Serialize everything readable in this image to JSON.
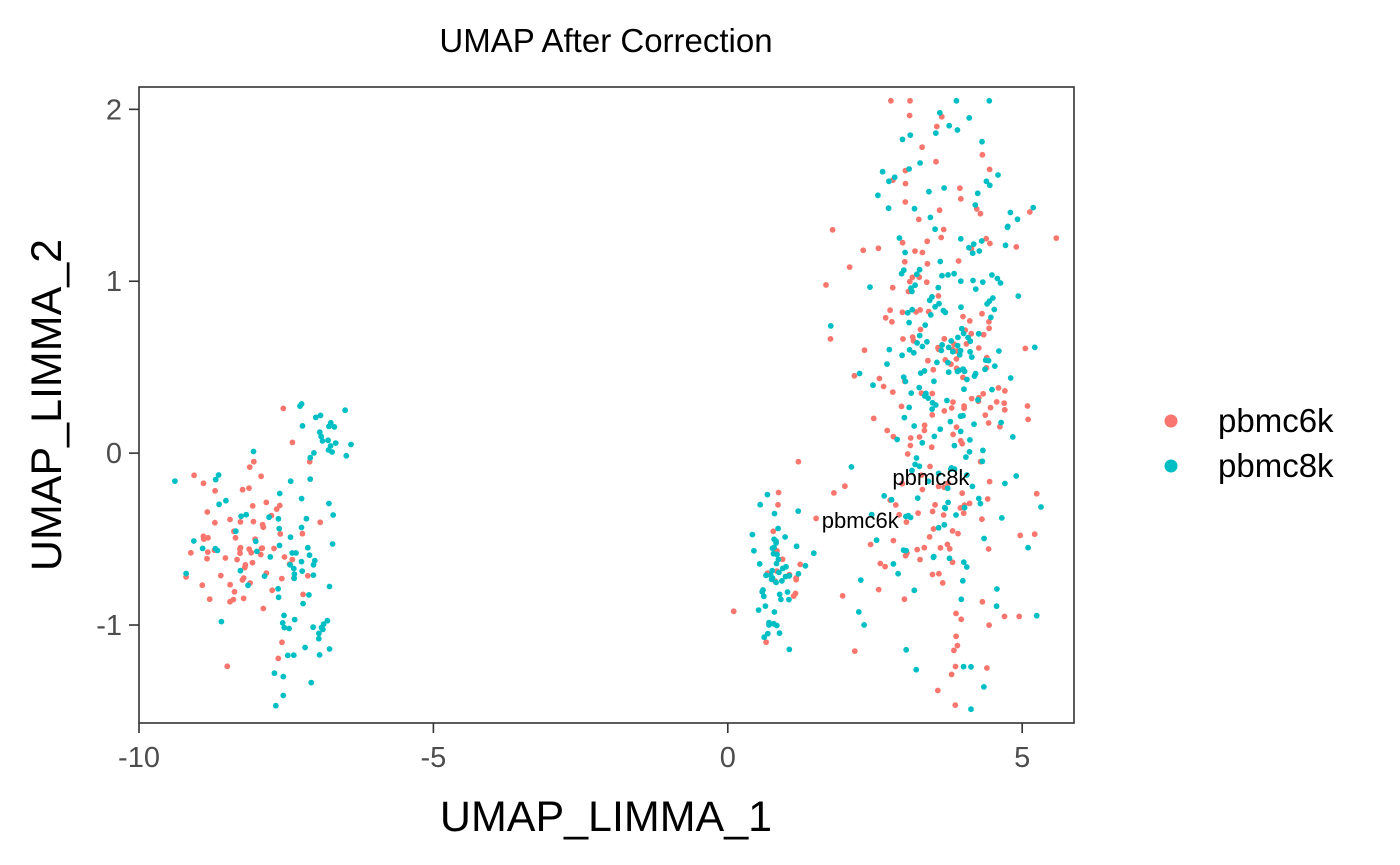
{
  "chart_data": {
    "type": "scatter",
    "title": "UMAP After Correction",
    "xlabel": "UMAP_LIMMA_1",
    "ylabel": "UMAP_LIMMA_2",
    "xlim": [
      -10.0,
      5.88
    ],
    "ylim": [
      -1.57,
      2.13
    ],
    "xticks": [
      -10,
      -5,
      0,
      5
    ],
    "xtick_labels": [
      "-10",
      "-5",
      "0",
      "5"
    ],
    "yticks": [
      -1,
      0,
      1,
      2
    ],
    "ytick_labels": [
      "-1",
      "0",
      "1",
      "2"
    ],
    "grid": false,
    "legend_position": "right",
    "series": [
      {
        "name": "pbmc6k",
        "color": "#F8766D",
        "clusters": [
          {
            "center": [
              -8.25,
              -0.52
            ],
            "spread": [
              0.55,
              0.24
            ],
            "n": 58
          },
          {
            "center": [
              -7.6,
              -0.92
            ],
            "spread": [
              0.3,
              0.22
            ],
            "n": 8
          },
          {
            "center": [
              0.95,
              -0.62
            ],
            "spread": [
              0.22,
              0.2
            ],
            "n": 14
          },
          {
            "center": [
              3.55,
              0.35
            ],
            "spread": [
              0.72,
              0.7
            ],
            "n": 185
          }
        ],
        "points": [
          [
            -9.2,
            -0.72
          ],
          [
            -9.12,
            -0.58
          ],
          [
            -8.9,
            -0.5
          ],
          [
            -8.8,
            -0.85
          ],
          [
            -8.5,
            -1.24
          ],
          [
            -8.05,
            -0.05
          ],
          [
            -7.55,
            0.26
          ],
          [
            -7.6,
            -0.47
          ],
          [
            -7.1,
            -0.05
          ],
          [
            0.1,
            -0.92
          ],
          [
            0.65,
            -1.1
          ],
          [
            1.2,
            -0.05
          ],
          [
            1.5,
            -0.38
          ],
          [
            1.95,
            -0.83
          ],
          [
            2.15,
            0.45
          ],
          [
            2.3,
            1.18
          ],
          [
            3.3,
            1.78
          ],
          [
            3.55,
            1.9
          ],
          [
            4.7,
            -0.95
          ],
          [
            4.9,
            1.2
          ],
          [
            3.9,
            -1.12
          ],
          [
            4.4,
            -1.25
          ],
          [
            3.0,
            -0.85
          ],
          [
            4.95,
            -0.95
          ]
        ]
      },
      {
        "name": "pbmc8k",
        "color": "#00BFC4",
        "clusters": [
          {
            "center": [
              -7.3,
              -0.72
            ],
            "spread": [
              0.35,
              0.38
            ],
            "n": 55
          },
          {
            "center": [
              -8.4,
              -0.5
            ],
            "spread": [
              0.38,
              0.2
            ],
            "n": 18
          },
          {
            "center": [
              -6.85,
              0.08
            ],
            "spread": [
              0.22,
              0.1
            ],
            "n": 16
          },
          {
            "center": [
              0.82,
              -0.7
            ],
            "spread": [
              0.22,
              0.22
            ],
            "n": 50
          },
          {
            "center": [
              3.7,
              0.5
            ],
            "spread": [
              0.65,
              0.72
            ],
            "n": 210
          }
        ],
        "points": [
          [
            -9.2,
            -0.7
          ],
          [
            -8.6,
            -0.98
          ],
          [
            -7.55,
            -1.41
          ],
          [
            -7.55,
            -1.3
          ],
          [
            -6.5,
            0.25
          ],
          [
            -6.4,
            0.05
          ],
          [
            -7.7,
            -1.28
          ],
          [
            0.55,
            -0.3
          ],
          [
            0.7,
            -1.0
          ],
          [
            1.75,
            0.74
          ],
          [
            2.1,
            -0.08
          ],
          [
            3.2,
            -1.26
          ],
          [
            3.6,
            1.98
          ],
          [
            3.9,
            1.88
          ],
          [
            4.1,
            1.95
          ],
          [
            4.35,
            -1.36
          ],
          [
            5.1,
            -0.55
          ],
          [
            3.1,
            1.85
          ],
          [
            4.8,
            1.4
          ],
          [
            2.55,
            1.5
          ]
        ]
      }
    ],
    "annotations": [
      {
        "text": "pbmc8k",
        "x": 3.45,
        "y": -0.14
      },
      {
        "text": "pbmc6k",
        "x": 2.25,
        "y": -0.39
      }
    ],
    "seed": 20240607
  }
}
